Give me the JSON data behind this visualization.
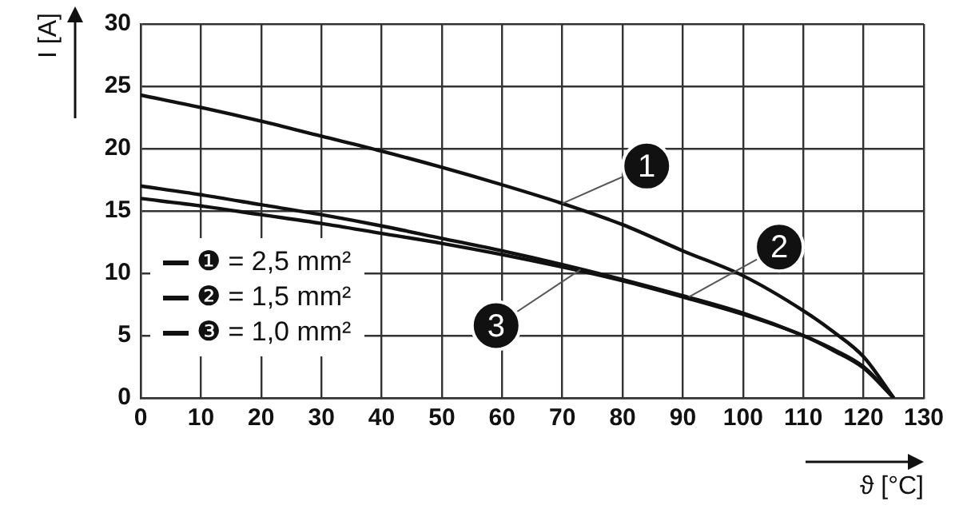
{
  "chart_data": {
    "type": "line",
    "xlabel": "ϑ [°C]",
    "ylabel": "I [A]",
    "x": [
      0,
      10,
      20,
      30,
      40,
      50,
      60,
      70,
      80,
      90,
      100,
      110,
      115,
      120,
      125
    ],
    "series": [
      {
        "name": "❶ = 2,5 mm²",
        "color": "#111111",
        "values": [
          24.3,
          23.3,
          22.2,
          21,
          19.8,
          18.5,
          17.1,
          15.6,
          13.9,
          11.8,
          9.8,
          7.0,
          5.3,
          3.3,
          0
        ]
      },
      {
        "name": "❷ = 1,5 mm²",
        "color": "#111111",
        "values": [
          17,
          16.3,
          15.5,
          14.7,
          13.8,
          12.8,
          11.8,
          10.7,
          9.5,
          8.2,
          6.8,
          5.0,
          3.9,
          2.5,
          0
        ]
      },
      {
        "name": "❸ = 1,0 mm²",
        "color": "#111111",
        "values": [
          16,
          15.4,
          14.7,
          14,
          13.2,
          12.4,
          11.5,
          10.5,
          9.4,
          8.1,
          6.7,
          5.0,
          3.8,
          2.4,
          0
        ]
      }
    ],
    "annotations": [
      {
        "text": "1",
        "x": 70,
        "y": 15.6
      },
      {
        "text": "2",
        "x": 91,
        "y": 8.1
      },
      {
        "text": "3",
        "x": 73,
        "y": 10.3
      }
    ],
    "xlim": [
      0,
      130
    ],
    "xticks": [
      0,
      10,
      20,
      30,
      40,
      50,
      60,
      70,
      80,
      90,
      100,
      110,
      120,
      130
    ],
    "ylim": [
      0,
      30
    ],
    "yticks": [
      0,
      5,
      10,
      15,
      20,
      25,
      30
    ],
    "grid": true,
    "legend": "bottom left",
    "marker": "none",
    "line_style": "solid"
  }
}
